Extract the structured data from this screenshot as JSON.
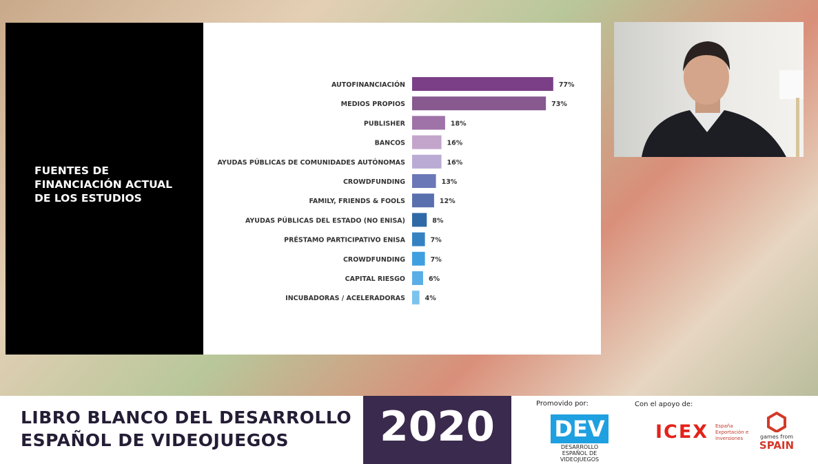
{
  "slide_title": "FUENTES DE FINANCIACIÓN ACTUAL DE LOS ESTUDIOS",
  "chart_data": {
    "type": "hbar",
    "categories": [
      "AUTOFINANCIACIÓN",
      "MEDIOS PROPIOS",
      "PUBLISHER",
      "BANCOS",
      "AYUDAS PÚBLICAS DE COMUNIDADES AUTÓNOMAS",
      "CROWDFUNDING",
      "FAMILY, FRIENDS & FOOLS",
      "AYUDAS PÚBLICAS DEL ESTADO (NO ENISA)",
      "PRÉSTAMO PARTICIPATIVO ENISA",
      "CROWDFUNDING",
      "CAPITAL RIESGO",
      "INCUBADORAS / ACELERADORAS"
    ],
    "values": [
      77,
      73,
      18,
      16,
      16,
      13,
      12,
      8,
      7,
      7,
      6,
      4
    ],
    "value_labels": [
      "77%",
      "73%",
      "18%",
      "16%",
      "16%",
      "13%",
      "12%",
      "8%",
      "7%",
      "7%",
      "6%",
      "4%"
    ],
    "colors": [
      "#7a3f86",
      "#87598f",
      "#9f72a8",
      "#c3a5cb",
      "#b9abd3",
      "#6b78b7",
      "#5a6fae",
      "#2f6aa6",
      "#3582c2",
      "#3f9fe0",
      "#5aaee6",
      "#7cc3ee"
    ]
  },
  "footer": {
    "title": "LIBRO BLANCO DEL DESARROLLO ESPAÑOL DE VIDEOJUEGOS",
    "year": "2020",
    "promoted_label": "Promovido por:",
    "support_label": "Con el apoyo de:",
    "dev_logo": "DEV",
    "dev_caption": "DESARROLLO ESPAÑOL DE VIDEOJUEGOS",
    "icex_logo": "ICEX",
    "icex_caption": "España Exportación e Inversiones",
    "gfs_top": "games from",
    "gfs_bottom": "SPAIN"
  }
}
